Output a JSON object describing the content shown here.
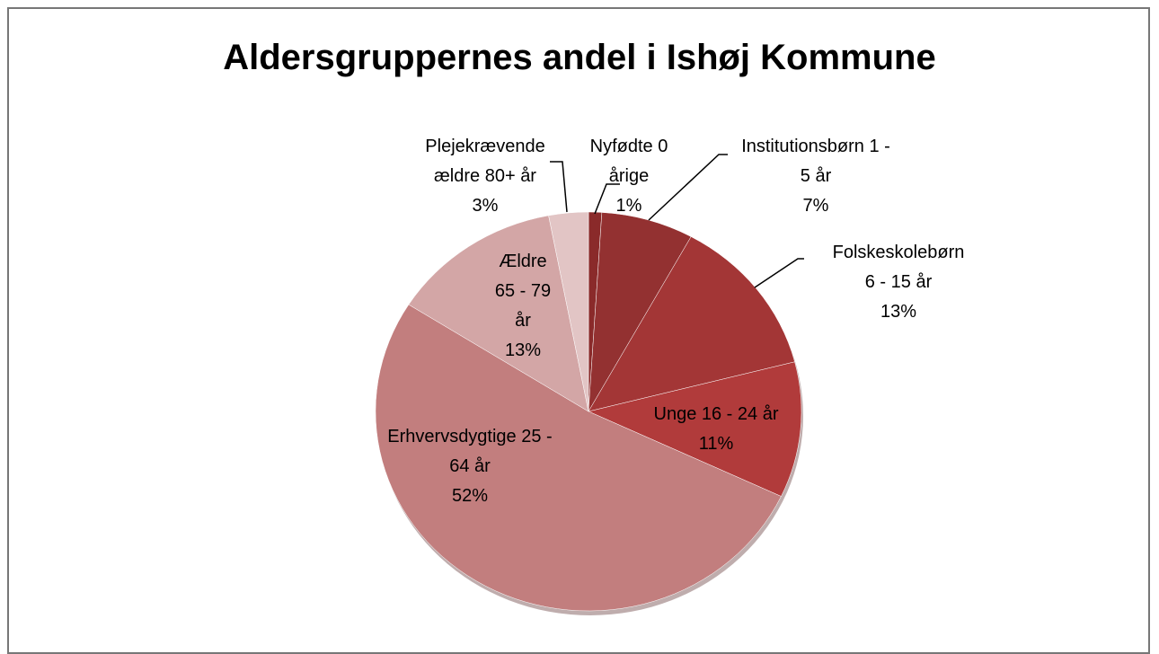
{
  "chart_data": {
    "type": "pie",
    "title": "Aldersgruppernes andel i Ishøj Kommune",
    "categories": [
      "Nyfødte 0 årige",
      "Institutionsbørn 1 - 5 år",
      "Folskeskolebørn 6 - 15 år",
      "Unge 16 - 24 år",
      "Erhvervsdygtige 25 - 64 år",
      "Ældre 65 - 79 år",
      "Plejekrævende ældre 80+ år"
    ],
    "values": [
      1,
      7,
      13,
      11,
      52,
      13,
      3
    ],
    "value_labels": [
      "1%",
      "7%",
      "13%",
      "11%",
      "52%",
      "13%",
      "3%"
    ],
    "colors": [
      "#8a2a2a",
      "#933131",
      "#a33636",
      "#b13b3b",
      "#c27e7e",
      "#d3a6a6",
      "#e2c5c5"
    ]
  }
}
